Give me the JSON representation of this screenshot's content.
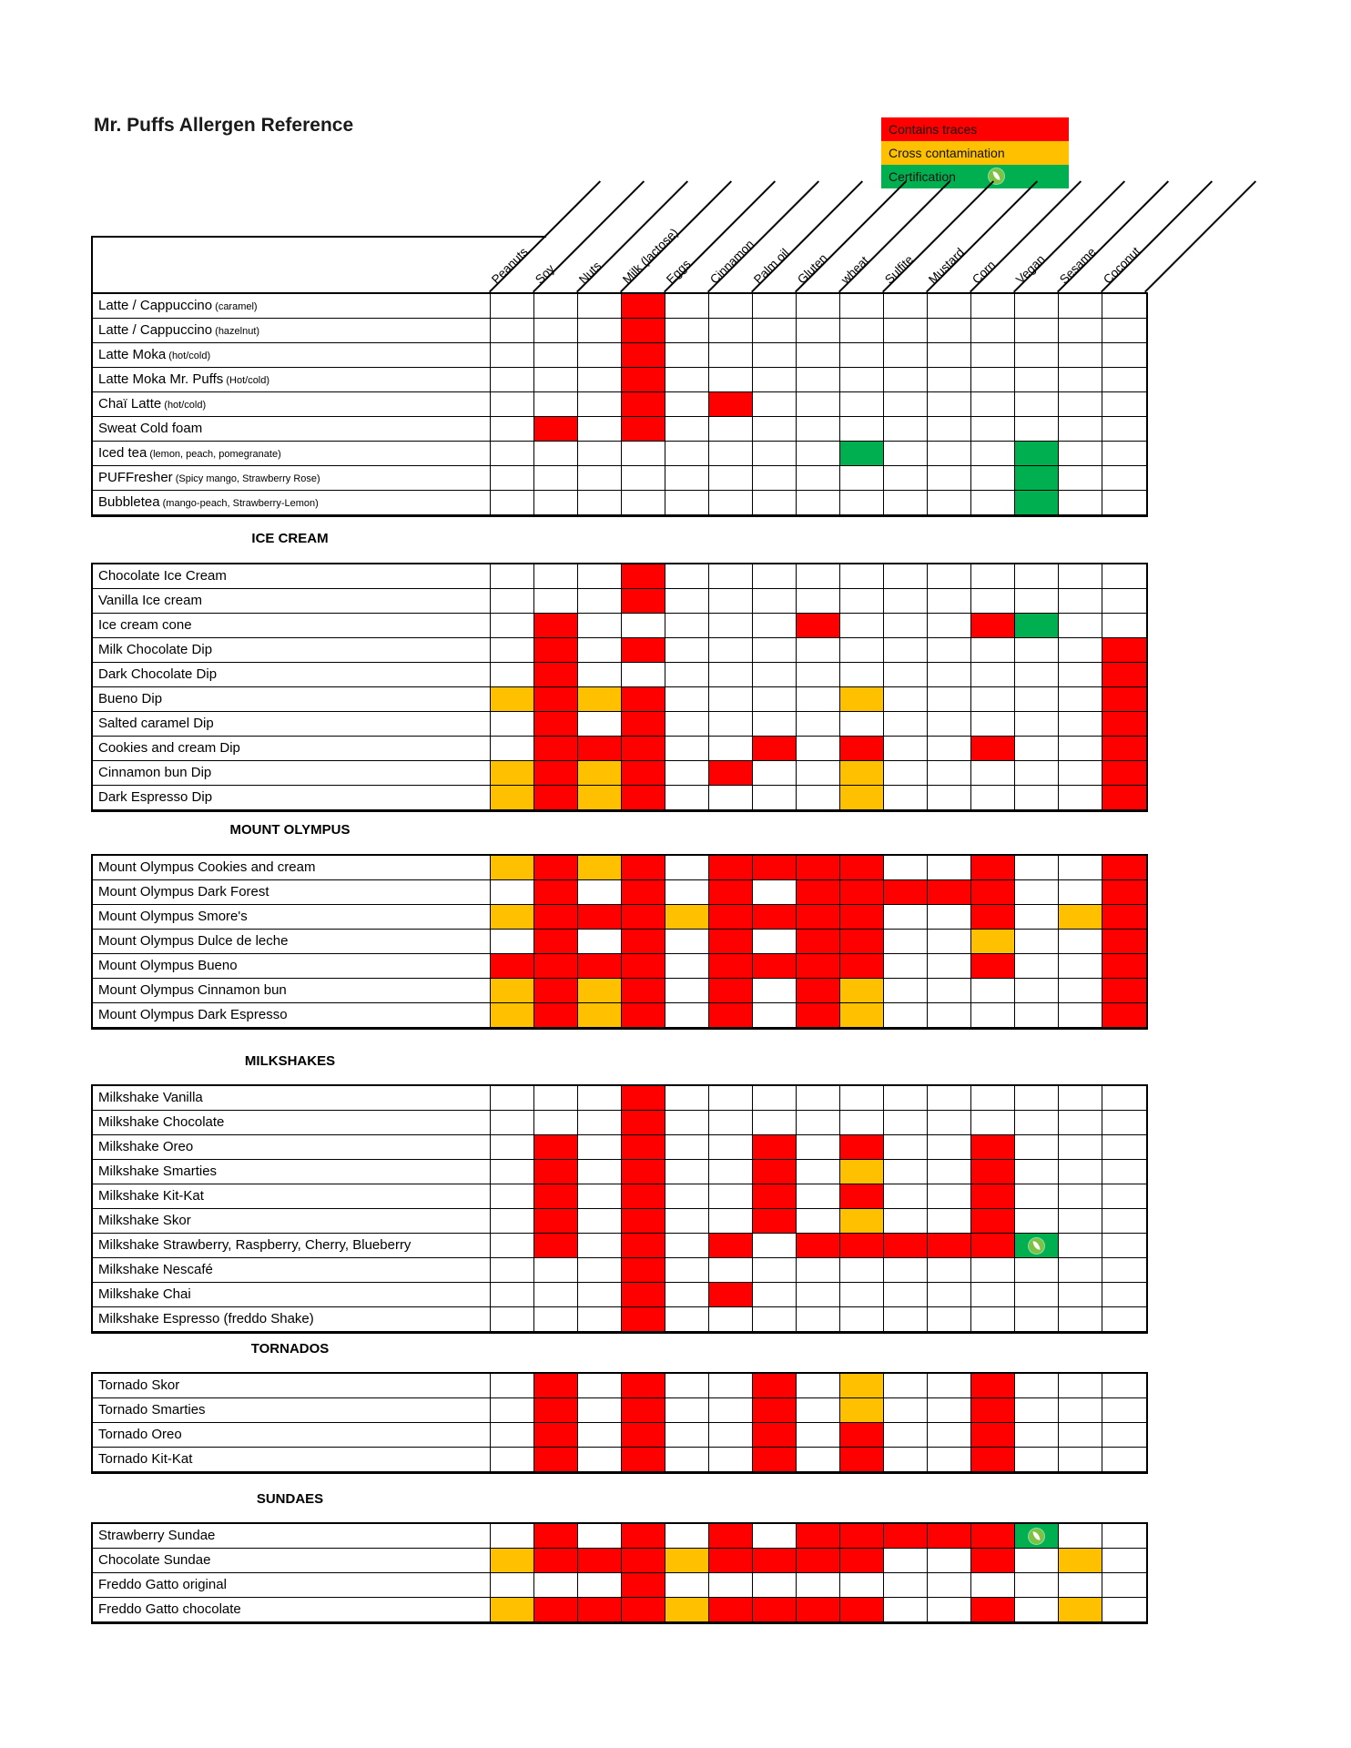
{
  "title": "Mr. Puffs Allergen Reference",
  "colors": {
    "red": "#FF0000",
    "orange": "#FFC000",
    "green": "#00B050"
  },
  "legend": [
    {
      "label": "Contains traces",
      "color": "red",
      "icon": false
    },
    {
      "label": "Cross contamination",
      "color": "orange",
      "icon": false
    },
    {
      "label": "Certification",
      "color": "green",
      "icon": true
    }
  ],
  "columns": [
    "Peanuts",
    "Soy",
    "Nuts",
    "Milk (lactose)",
    "Eggs",
    "Cinnamon",
    "Palm oil",
    "Gluten",
    "wheat",
    "Sulfite",
    "Mustard",
    "Corn",
    "Vegan",
    "Sesame",
    "Coconut"
  ],
  "cell_codes": {
    "R": "contains-traces",
    "O": "cross-contamination",
    "G": "certification",
    "GI": "certification-with-icon"
  },
  "sections": [
    {
      "title": null,
      "rows": [
        {
          "label": "Latte / Cappuccino",
          "note": "(caramel)",
          "cells": {
            "4": "R"
          }
        },
        {
          "label": "Latte / Cappuccino",
          "note": "(hazelnut)",
          "cells": {
            "4": "R"
          }
        },
        {
          "label": "Latte Moka",
          "note": "(hot/cold)",
          "cells": {
            "4": "R"
          }
        },
        {
          "label": "Latte Moka Mr. Puffs",
          "note": "(Hot/cold)",
          "cells": {
            "4": "R"
          }
        },
        {
          "label": "Chaï Latte",
          "note": "(hot/cold)",
          "cells": {
            "4": "R",
            "6": "R"
          }
        },
        {
          "label": "Sweat Cold foam",
          "note": "",
          "cells": {
            "2": "R",
            "4": "R"
          }
        },
        {
          "label": "Iced tea",
          "note": "(lemon, peach, pomegranate)",
          "cells": {
            "9": "G",
            "13": "G"
          }
        },
        {
          "label": "PUFFresher",
          "note": "(Spicy mango, Strawberry Rose)",
          "cells": {
            "13": "G"
          }
        },
        {
          "label": "Bubbletea",
          "note": "(mango-peach, Strawberry-Lemon)",
          "cells": {
            "13": "G"
          }
        }
      ]
    },
    {
      "title": "ICE CREAM",
      "rows": [
        {
          "label": "Chocolate Ice Cream",
          "note": "",
          "cells": {
            "4": "R"
          }
        },
        {
          "label": "Vanilla Ice cream",
          "note": "",
          "cells": {
            "4": "R"
          }
        },
        {
          "label": "Ice cream cone",
          "note": "",
          "cells": {
            "2": "R",
            "8": "R",
            "12": "R",
            "13": "G"
          }
        },
        {
          "label": "Milk Chocolate Dip",
          "note": "",
          "cells": {
            "2": "R",
            "4": "R",
            "15": "R"
          }
        },
        {
          "label": "Dark Chocolate Dip",
          "note": "",
          "cells": {
            "2": "R",
            "15": "R"
          }
        },
        {
          "label": "Bueno Dip",
          "note": "",
          "cells": {
            "1": "O",
            "2": "R",
            "3": "O",
            "4": "R",
            "9": "O",
            "15": "R"
          }
        },
        {
          "label": "Salted caramel Dip",
          "note": "",
          "cells": {
            "2": "R",
            "4": "R",
            "15": "R"
          }
        },
        {
          "label": "Cookies and cream Dip",
          "note": "",
          "cells": {
            "2": "R",
            "3": "R",
            "4": "R",
            "7": "R",
            "9": "R",
            "12": "R",
            "15": "R"
          }
        },
        {
          "label": "Cinnamon bun Dip",
          "note": "",
          "cells": {
            "1": "O",
            "2": "R",
            "3": "O",
            "4": "R",
            "6": "R",
            "9": "O",
            "15": "R"
          }
        },
        {
          "label": "Dark Espresso Dip",
          "note": "",
          "cells": {
            "1": "O",
            "2": "R",
            "3": "O",
            "4": "R",
            "9": "O",
            "15": "R"
          }
        }
      ]
    },
    {
      "title": "MOUNT OLYMPUS",
      "rows": [
        {
          "label": "Mount Olympus Cookies and cream",
          "note": "",
          "cells": {
            "1": "O",
            "2": "R",
            "3": "O",
            "4": "R",
            "6": "R",
            "7": "R",
            "8": "R",
            "9": "R",
            "12": "R",
            "15": "R"
          }
        },
        {
          "label": "Mount Olympus Dark Forest",
          "note": "",
          "cells": {
            "2": "R",
            "4": "R",
            "6": "R",
            "8": "R",
            "9": "R",
            "10": "R",
            "11": "R",
            "12": "R",
            "15": "R"
          }
        },
        {
          "label": "Mount Olympus Smore's",
          "note": "",
          "cells": {
            "1": "O",
            "2": "R",
            "3": "R",
            "4": "R",
            "5": "O",
            "6": "R",
            "7": "R",
            "8": "R",
            "9": "R",
            "12": "R",
            "14": "O",
            "15": "R"
          }
        },
        {
          "label": "Mount Olympus Dulce de leche",
          "note": "",
          "cells": {
            "2": "R",
            "4": "R",
            "6": "R",
            "8": "R",
            "9": "R",
            "12": "O",
            "15": "R"
          }
        },
        {
          "label": "Mount Olympus Bueno",
          "note": "",
          "cells": {
            "1": "R",
            "2": "R",
            "3": "R",
            "4": "R",
            "6": "R",
            "7": "R",
            "8": "R",
            "9": "R",
            "12": "R",
            "15": "R"
          }
        },
        {
          "label": "Mount Olympus Cinnamon bun",
          "note": "",
          "cells": {
            "1": "O",
            "2": "R",
            "3": "O",
            "4": "R",
            "6": "R",
            "8": "R",
            "9": "O",
            "15": "R"
          }
        },
        {
          "label": "Mount Olympus Dark Espresso",
          "note": "",
          "cells": {
            "1": "O",
            "2": "R",
            "3": "O",
            "4": "R",
            "6": "R",
            "8": "R",
            "9": "O",
            "15": "R"
          }
        }
      ]
    },
    {
      "title": "MILKSHAKES",
      "rows": [
        {
          "label": "Milkshake Vanilla",
          "note": "",
          "cells": {
            "4": "R"
          }
        },
        {
          "label": "Milkshake Chocolate",
          "note": "",
          "cells": {
            "4": "R"
          }
        },
        {
          "label": "Milkshake Oreo",
          "note": "",
          "cells": {
            "2": "R",
            "4": "R",
            "7": "R",
            "9": "R",
            "12": "R"
          }
        },
        {
          "label": "Milkshake Smarties",
          "note": "",
          "cells": {
            "2": "R",
            "4": "R",
            "7": "R",
            "9": "O",
            "12": "R"
          }
        },
        {
          "label": "Milkshake Kit-Kat",
          "note": "",
          "cells": {
            "2": "R",
            "4": "R",
            "7": "R",
            "9": "R",
            "12": "R"
          }
        },
        {
          "label": "Milkshake Skor",
          "note": "",
          "cells": {
            "2": "R",
            "4": "R",
            "7": "R",
            "9": "O",
            "12": "R"
          }
        },
        {
          "label": "Milkshake Strawberry, Raspberry, Cherry, Blueberry",
          "note": "",
          "cells": {
            "2": "R",
            "4": "R",
            "6": "R",
            "8": "R",
            "9": "R",
            "10": "R",
            "11": "R",
            "12": "R",
            "13": "GI"
          }
        },
        {
          "label": "Milkshake Nescafé",
          "note": "",
          "cells": {
            "4": "R"
          }
        },
        {
          "label": "Milkshake Chai",
          "note": "",
          "cells": {
            "4": "R",
            "6": "R"
          }
        },
        {
          "label": "Milkshake Espresso (freddo Shake)",
          "note": "",
          "cells": {
            "4": "R"
          }
        }
      ]
    },
    {
      "title": "TORNADOS",
      "rows": [
        {
          "label": "Tornado Skor",
          "note": "",
          "cells": {
            "2": "R",
            "4": "R",
            "7": "R",
            "9": "O",
            "12": "R"
          }
        },
        {
          "label": "Tornado Smarties",
          "note": "",
          "cells": {
            "2": "R",
            "4": "R",
            "7": "R",
            "9": "O",
            "12": "R"
          }
        },
        {
          "label": "Tornado Oreo",
          "note": "",
          "cells": {
            "2": "R",
            "4": "R",
            "7": "R",
            "9": "R",
            "12": "R"
          }
        },
        {
          "label": "Tornado Kit-Kat",
          "note": "",
          "cells": {
            "2": "R",
            "4": "R",
            "7": "R",
            "9": "R",
            "12": "R"
          }
        }
      ]
    },
    {
      "title": "SUNDAES",
      "rows": [
        {
          "label": "Strawberry Sundae",
          "note": "",
          "cells": {
            "2": "R",
            "4": "R",
            "6": "R",
            "8": "R",
            "9": "R",
            "10": "R",
            "11": "R",
            "12": "R",
            "13": "GI"
          }
        },
        {
          "label": "Chocolate Sundae",
          "note": "",
          "cells": {
            "1": "O",
            "2": "R",
            "3": "R",
            "4": "R",
            "5": "O",
            "6": "R",
            "7": "R",
            "8": "R",
            "9": "R",
            "12": "R",
            "14": "O"
          }
        },
        {
          "label": "Freddo Gatto original",
          "note": "",
          "cells": {
            "4": "R"
          }
        },
        {
          "label": "Freddo Gatto chocolate",
          "note": "",
          "cells": {
            "1": "O",
            "2": "R",
            "3": "R",
            "4": "R",
            "5": "O",
            "6": "R",
            "7": "R",
            "8": "R",
            "9": "R",
            "12": "R",
            "14": "O"
          }
        }
      ]
    }
  ]
}
